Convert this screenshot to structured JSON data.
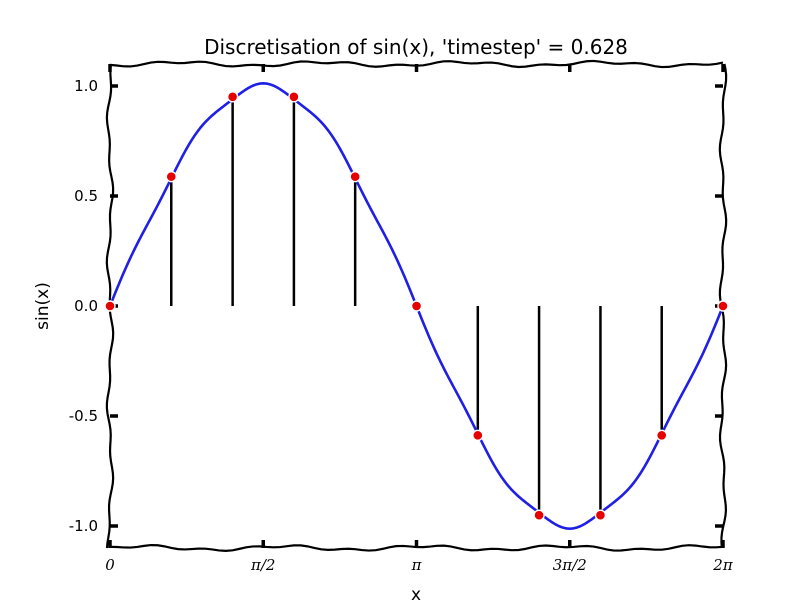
{
  "chart_data": {
    "type": "line",
    "title": "Discretisation of sin(x), 'timestep' = 0.628",
    "xlabel": "x",
    "ylabel": "sin(x)",
    "xlim": [
      0,
      6.283185307179586
    ],
    "ylim": [
      -1.1,
      1.1
    ],
    "grid": false,
    "x_ticks": [
      {
        "value": 0,
        "label": "0"
      },
      {
        "value": 1.5707963267948966,
        "label": "π/2"
      },
      {
        "value": 3.141592653589793,
        "label": "π"
      },
      {
        "value": 4.71238898038469,
        "label": "3π/2"
      },
      {
        "value": 6.283185307179586,
        "label": "2π"
      }
    ],
    "y_ticks": [
      {
        "value": 1.0,
        "label": "1.0"
      },
      {
        "value": 0.5,
        "label": "0.5"
      },
      {
        "value": 0.0,
        "label": "0.0"
      },
      {
        "value": -0.5,
        "label": "-0.5"
      },
      {
        "value": -1.0,
        "label": "-1.0"
      }
    ],
    "series": [
      {
        "kind": "curve",
        "function": "sin(x)",
        "color": "#1f1fe6"
      },
      {
        "kind": "stem",
        "color": "#000000",
        "marker_color": "#e60000",
        "x": [
          0.0,
          0.628,
          1.257,
          1.885,
          2.513,
          3.142,
          3.77,
          4.398,
          5.027,
          5.655,
          6.283
        ],
        "y": [
          0.0,
          0.588,
          0.951,
          0.951,
          0.588,
          0.0,
          -0.588,
          -0.951,
          -0.951,
          -0.588,
          0.0
        ]
      }
    ]
  }
}
